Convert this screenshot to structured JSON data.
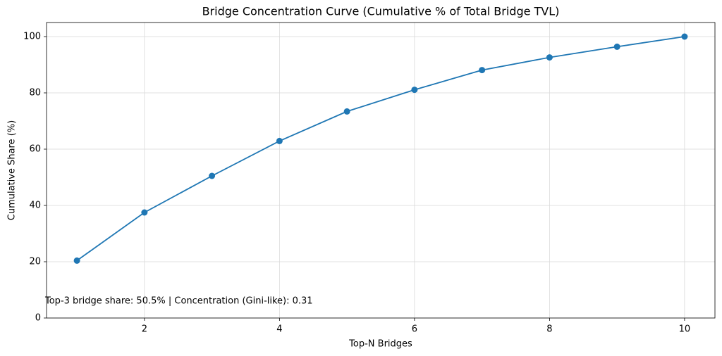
{
  "chart_data": {
    "type": "line",
    "title": "Bridge Concentration Curve (Cumulative % of Total Bridge TVL)",
    "x_label": "Top-N Bridges",
    "y_label": "Cumulative Share (%)",
    "annotation": "Top-3 bridge share: 50.5% | Concentration (Gini-like): 0.31",
    "x": [
      1,
      2,
      3,
      4,
      5,
      6,
      7,
      8,
      9,
      10
    ],
    "values": [
      20.4,
      37.5,
      50.5,
      62.9,
      73.4,
      81.1,
      88.1,
      92.6,
      96.4,
      100
    ],
    "color": "#1f77b4",
    "xlim": [
      0.55,
      10.45
    ],
    "ylim": [
      0,
      105
    ],
    "xticks": [
      2,
      4,
      6,
      8,
      10
    ],
    "yticks": [
      0,
      20,
      40,
      60,
      80,
      100
    ],
    "grid": true
  }
}
